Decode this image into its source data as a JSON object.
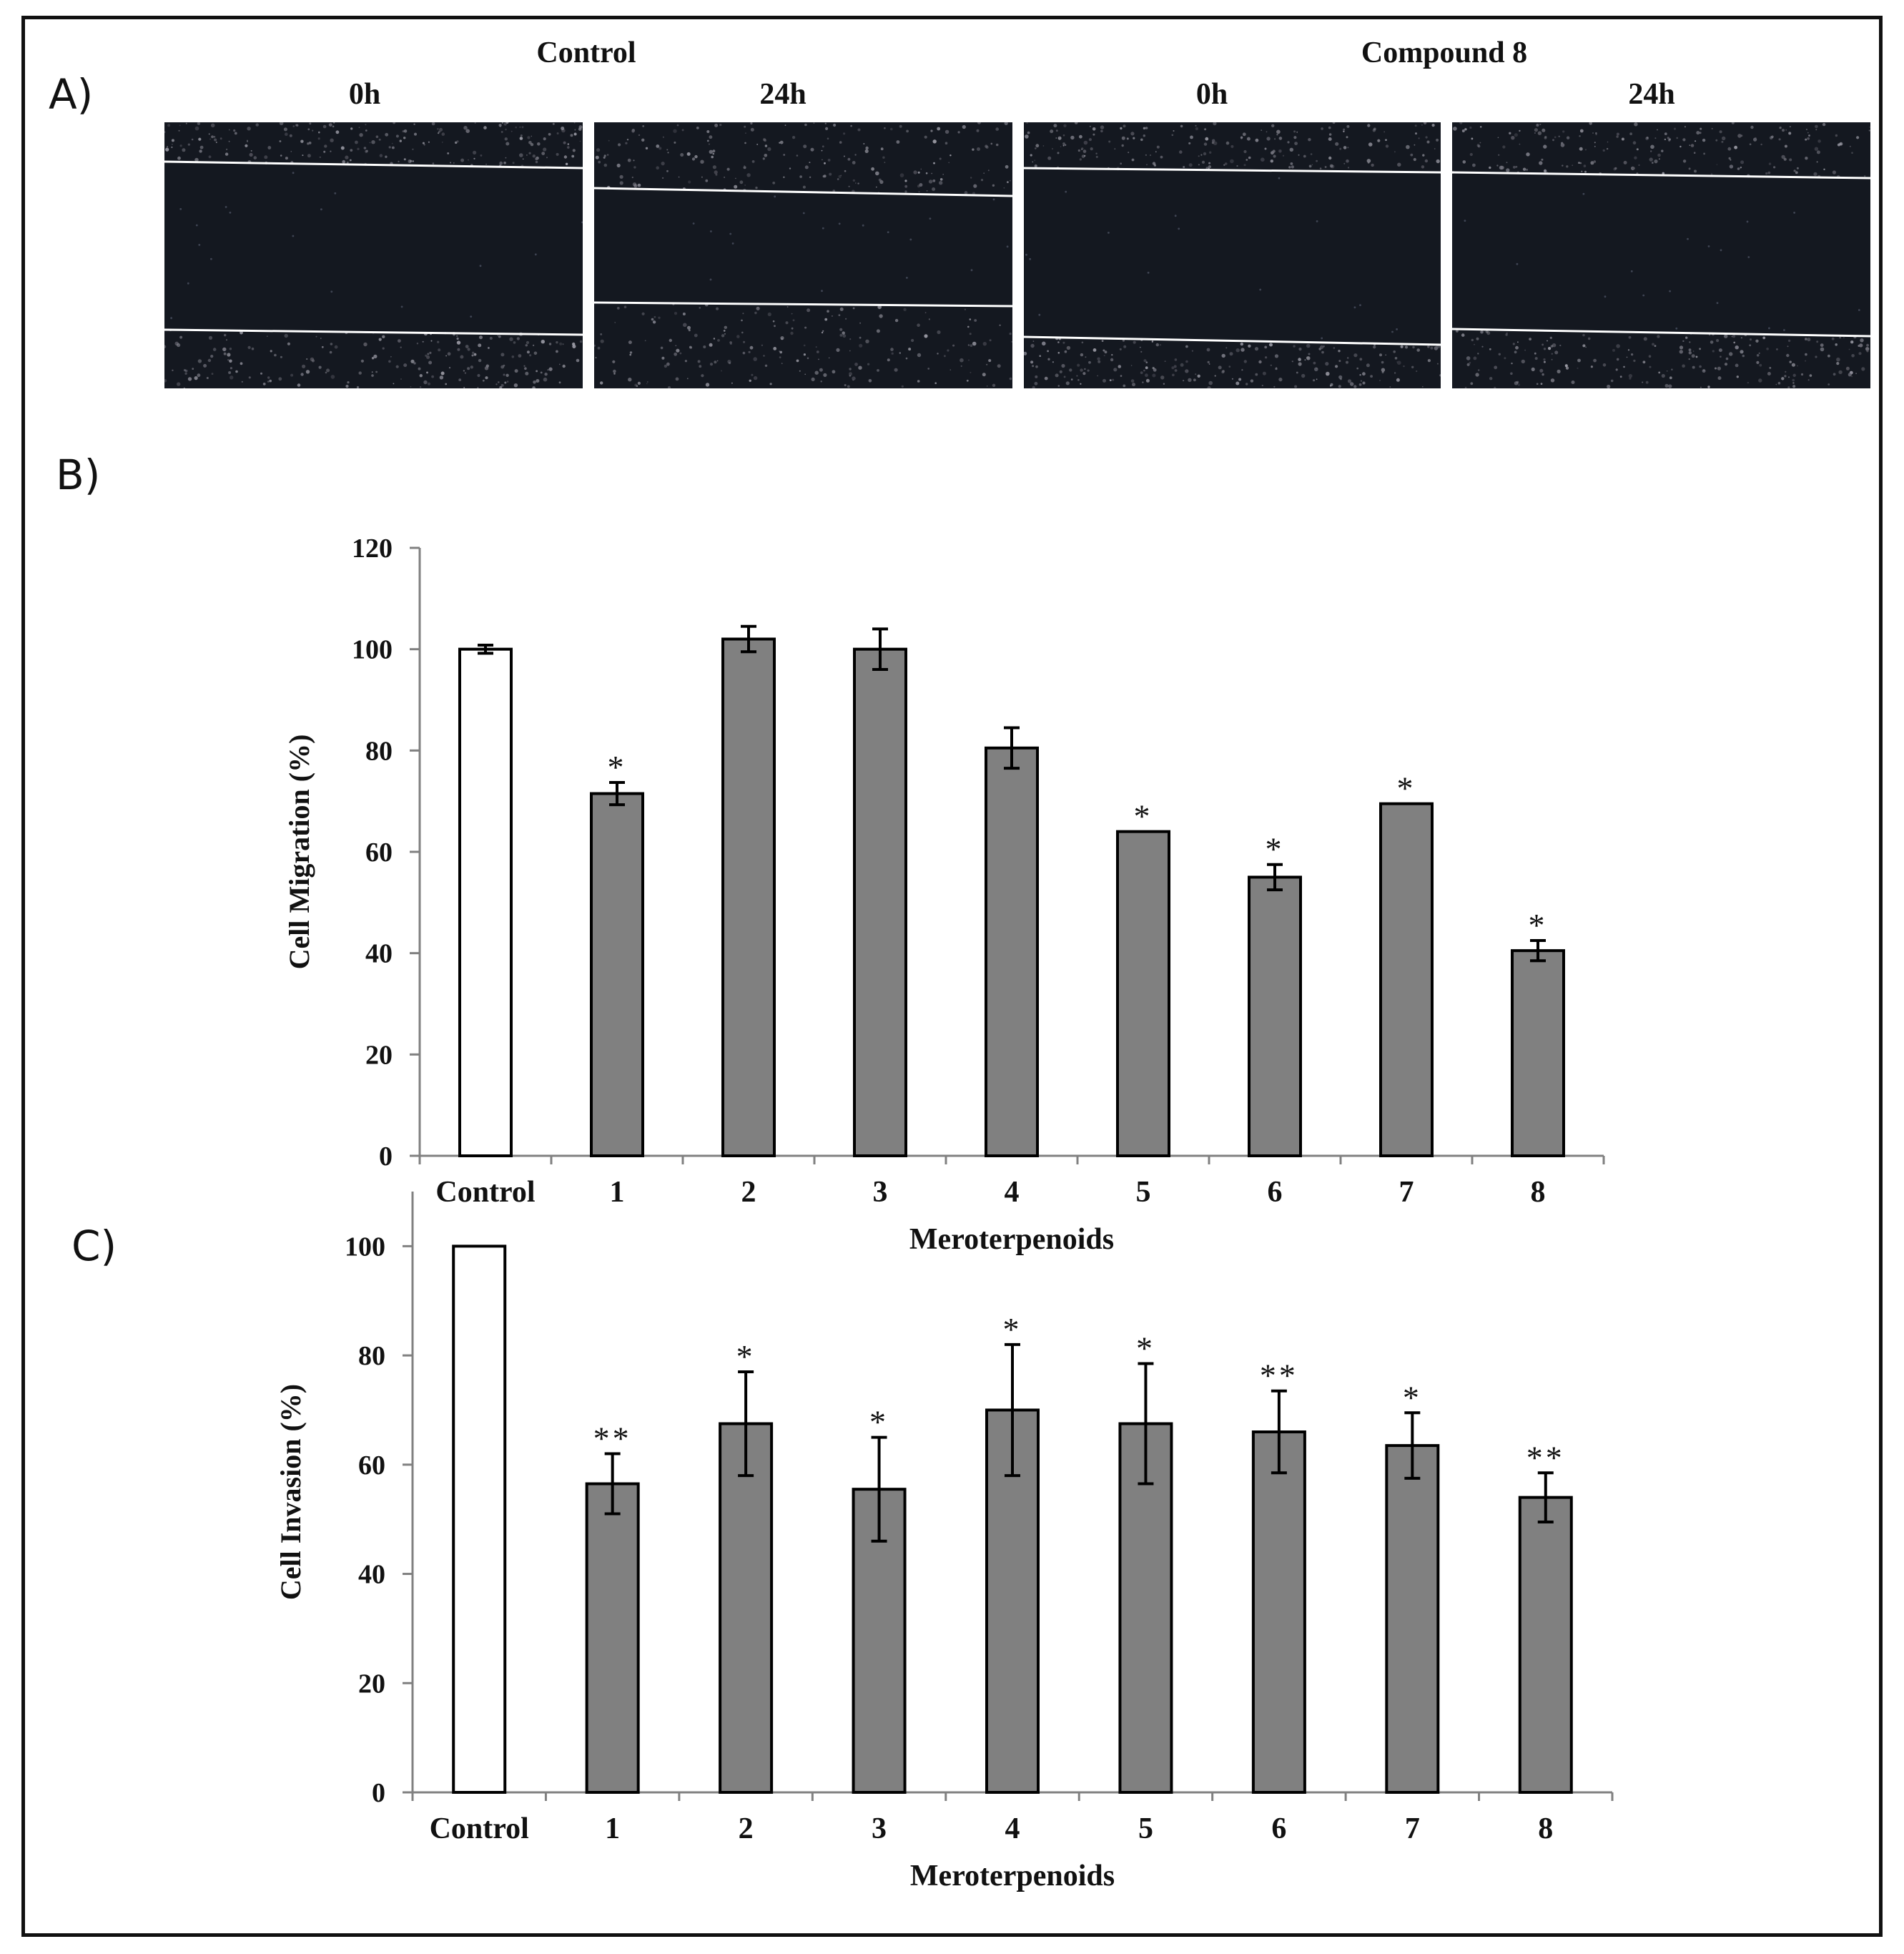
{
  "panel_a": {
    "letter": "A)",
    "group_labels": [
      "Control",
      "Compound 8"
    ],
    "time_labels": [
      "0h",
      "24h",
      "0h",
      "24h"
    ]
  },
  "panel_b": {
    "letter": "B)"
  },
  "panel_c": {
    "letter": "C)"
  },
  "colors": {
    "control_bar": "#ffffff",
    "treated_bar": "#808080",
    "outline": "#000000",
    "axis": "#808080"
  },
  "chart_data": [
    {
      "type": "bar",
      "title": "",
      "xlabel": "Meroterpenoids",
      "ylabel": "Cell Migration (%)",
      "ylim": [
        0,
        120
      ],
      "yticks": [
        0,
        20,
        40,
        60,
        80,
        100,
        120
      ],
      "categories": [
        "Control",
        "1",
        "2",
        "3",
        "4",
        "5",
        "6",
        "7",
        "8"
      ],
      "values": [
        100,
        71.5,
        102,
        100,
        80.5,
        64,
        55,
        69.5,
        40.5
      ],
      "errors": [
        0.8,
        2.2,
        2.5,
        4,
        4,
        0,
        2.5,
        0,
        2
      ],
      "annotations": [
        "",
        "*",
        "",
        "",
        "",
        "*",
        "*",
        "*",
        "*"
      ],
      "bar_colors": [
        "#ffffff",
        "#808080",
        "#808080",
        "#808080",
        "#808080",
        "#808080",
        "#808080",
        "#808080",
        "#808080"
      ],
      "grid": false
    },
    {
      "type": "bar",
      "title": "",
      "xlabel": "Meroterpenoids",
      "ylabel": "Cell Invasion (%)",
      "ylim": [
        0,
        110
      ],
      "yticks": [
        0,
        20,
        40,
        60,
        80,
        100
      ],
      "categories": [
        "Control",
        "1",
        "2",
        "3",
        "4",
        "5",
        "6",
        "7",
        "8"
      ],
      "values": [
        100,
        56.5,
        67.5,
        55.5,
        70,
        67.5,
        66,
        63.5,
        54
      ],
      "errors": [
        0,
        5.5,
        9.5,
        9.5,
        12,
        11,
        7.5,
        6,
        4.5
      ],
      "annotations": [
        "",
        "**",
        "*",
        "*",
        "*",
        "*",
        "**",
        "*",
        "**"
      ],
      "bar_colors": [
        "#ffffff",
        "#808080",
        "#808080",
        "#808080",
        "#808080",
        "#808080",
        "#808080",
        "#808080",
        "#808080"
      ],
      "grid": false
    }
  ]
}
